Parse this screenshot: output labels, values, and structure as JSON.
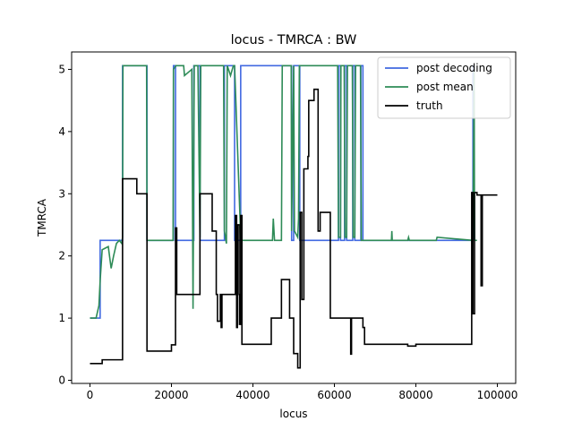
{
  "chart_data": {
    "type": "line",
    "title": "locus - TMRCA : BW",
    "xlabel": "locus",
    "ylabel": "TMRCA",
    "xlim": [
      -4500,
      104500
    ],
    "ylim": [
      -0.05,
      5.28
    ],
    "xticks": [
      0,
      20000,
      40000,
      60000,
      80000,
      100000
    ],
    "yticks": [
      0,
      1,
      2,
      3,
      4,
      5
    ],
    "legend_position": "upper-right",
    "grid": false,
    "series": [
      {
        "name": "post decoding",
        "color": "#4169e1",
        "step": true,
        "x": [
          0,
          2500,
          8000,
          14000,
          20500,
          21000,
          25500,
          27000,
          33000,
          35500,
          37000,
          49500,
          50000,
          51500,
          61000,
          61500,
          62500,
          63000,
          64500,
          65000,
          66500,
          67000,
          94000,
          94200
        ],
        "y": [
          1.0,
          2.25,
          5.06,
          2.25,
          5.06,
          2.25,
          5.06,
          2.25,
          5.06,
          2.25,
          5.06,
          2.25,
          5.06,
          2.25,
          5.06,
          2.25,
          5.06,
          2.25,
          5.06,
          2.25,
          5.06,
          2.25,
          5.06,
          2.25
        ]
      },
      {
        "name": "post mean",
        "color": "#2e8b57",
        "step": false,
        "x": [
          0,
          1500,
          2200,
          2500,
          3000,
          4500,
          5200,
          5800,
          6500,
          7200,
          7800,
          8000,
          8100,
          13900,
          14000,
          20400,
          20500,
          21000,
          21100,
          23000,
          23200,
          25000,
          25300,
          25400,
          25600,
          26500,
          27000,
          27200,
          32800,
          33000,
          33500,
          33700,
          34500,
          35200,
          35500,
          37000,
          37200,
          44800,
          45000,
          45300,
          47000,
          47200,
          49400,
          49500,
          50000,
          50200,
          51000,
          51200,
          51400,
          51600,
          52000,
          60800,
          61000,
          61500,
          61600,
          62400,
          62600,
          63000,
          63200,
          64400,
          64600,
          65000,
          65200,
          66400,
          66600,
          67000,
          74000,
          74100,
          74200,
          78000,
          78200,
          78400,
          85000,
          85200,
          94000,
          94300,
          94400,
          95000
        ],
        "y": [
          1.0,
          1.0,
          1.2,
          1.6,
          2.1,
          2.15,
          1.8,
          2.0,
          2.2,
          2.25,
          2.2,
          2.3,
          5.06,
          5.06,
          2.25,
          2.25,
          5.0,
          5.05,
          5.06,
          5.06,
          4.9,
          5.0,
          1.15,
          2.5,
          5.06,
          5.06,
          2.3,
          5.06,
          5.06,
          2.4,
          2.2,
          5.06,
          4.9,
          5.06,
          5.06,
          2.3,
          2.25,
          2.25,
          2.6,
          2.25,
          2.25,
          5.06,
          5.06,
          2.4,
          5.06,
          2.4,
          2.3,
          2.6,
          5.06,
          5.06,
          5.06,
          5.06,
          2.3,
          2.3,
          5.06,
          5.06,
          2.3,
          2.3,
          5.06,
          5.06,
          2.3,
          2.3,
          5.06,
          5.06,
          2.25,
          2.25,
          2.25,
          2.4,
          2.25,
          2.25,
          2.3,
          2.25,
          2.25,
          2.3,
          2.25,
          5.0,
          2.25,
          2.25
        ]
      },
      {
        "name": "truth",
        "color": "#000000",
        "step": true,
        "x": [
          0,
          3000,
          8000,
          11500,
          14000,
          20000,
          21000,
          21300,
          22000,
          27000,
          30000,
          31000,
          31300,
          32000,
          32200,
          32400,
          35500,
          35700,
          36000,
          36200,
          36600,
          36700,
          37000,
          37300,
          44500,
          47000,
          49000,
          50000,
          51000,
          51600,
          52000,
          52500,
          53500,
          53700,
          55000,
          56000,
          56500,
          59000,
          63000,
          64000,
          64200,
          67000,
          67400,
          70000,
          78000,
          80000,
          93000,
          93700,
          94000,
          94400,
          95000,
          96000,
          96300,
          97000,
          100000
        ],
        "y": [
          0.27,
          0.33,
          3.24,
          3.0,
          0.47,
          0.57,
          2.45,
          1.38,
          1.38,
          3.0,
          2.4,
          1.38,
          0.95,
          1.38,
          0.85,
          1.38,
          1.38,
          2.65,
          0.85,
          2.5,
          1.38,
          0.9,
          2.65,
          0.58,
          1.0,
          1.62,
          1.0,
          0.43,
          0.2,
          2.7,
          1.3,
          3.4,
          3.6,
          4.5,
          4.68,
          2.4,
          2.7,
          1.0,
          1.0,
          0.42,
          1.0,
          0.85,
          0.58,
          0.58,
          0.55,
          0.58,
          0.58,
          3.02,
          1.07,
          3.02,
          2.98,
          1.52,
          2.98,
          2.98,
          2.98
        ]
      }
    ]
  }
}
